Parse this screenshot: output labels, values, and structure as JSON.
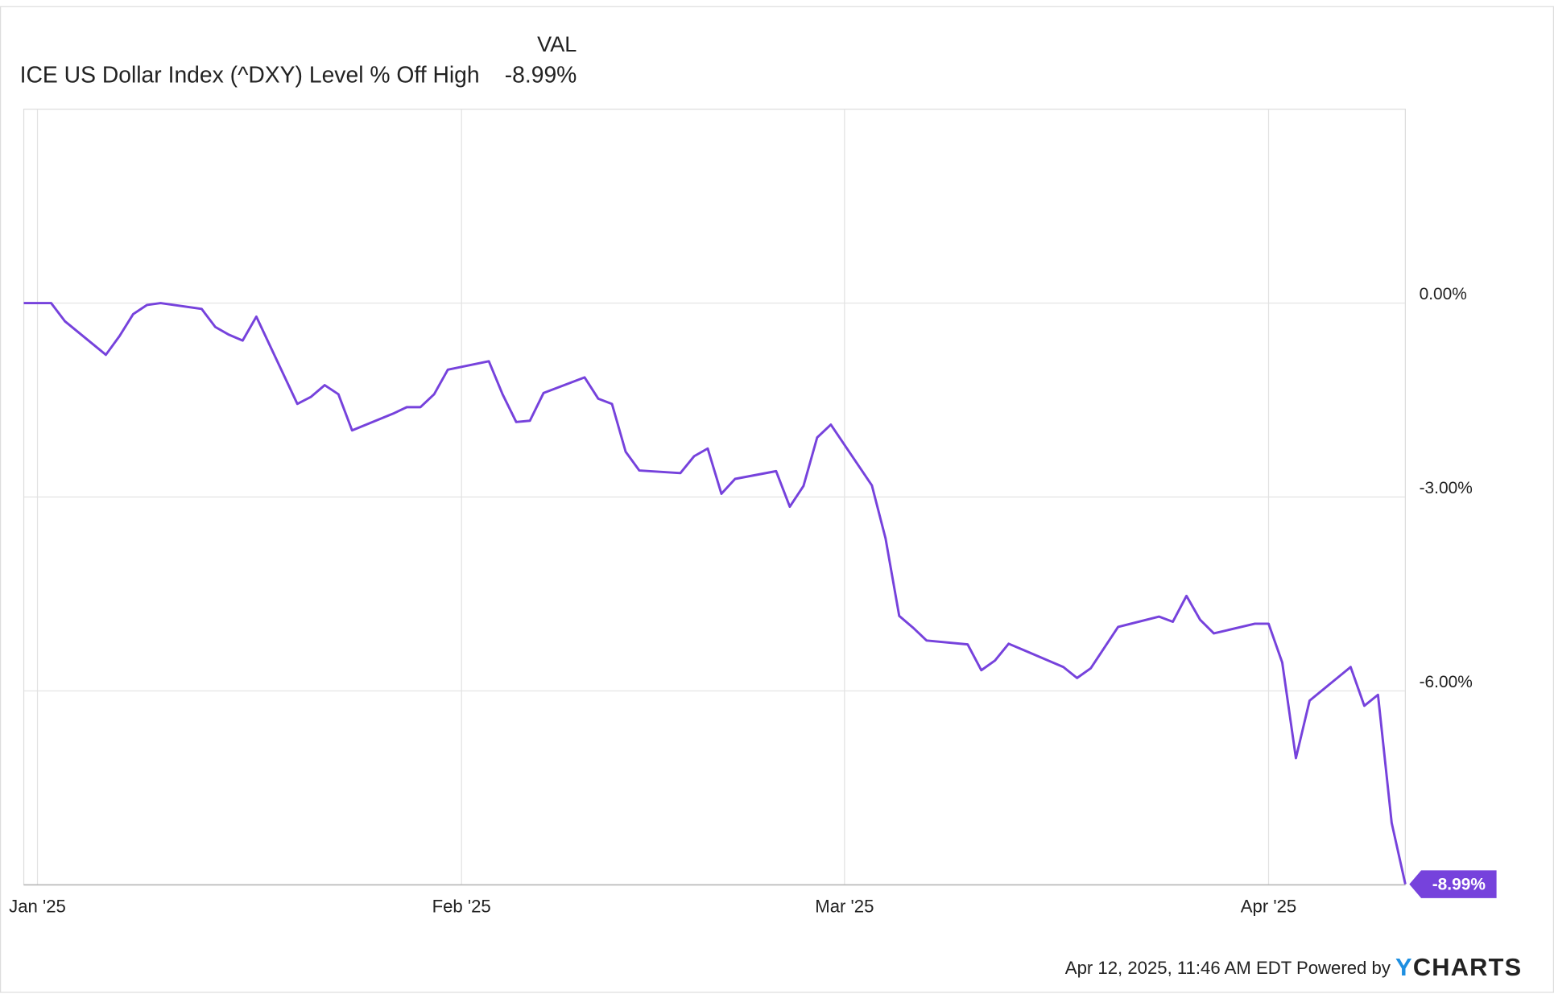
{
  "chart_data": {
    "type": "line",
    "value_column_label": "VAL",
    "x": [
      -1,
      1,
      2,
      5,
      6,
      7,
      8,
      9,
      12,
      13,
      14,
      15,
      16,
      19,
      20,
      21,
      22,
      23,
      26,
      27,
      28,
      29,
      30,
      33,
      34,
      35,
      36,
      37,
      40,
      41,
      42,
      43,
      44,
      47,
      48,
      49,
      50,
      51,
      54,
      55,
      56,
      57,
      58,
      61,
      62,
      63,
      64,
      65,
      68,
      69,
      70,
      71,
      72,
      75,
      76,
      77,
      79,
      82,
      83,
      84,
      85,
      86,
      89,
      90,
      91,
      92,
      93,
      96,
      97,
      98,
      99,
      100
    ],
    "series": [
      {
        "name": "ICE US Dollar Index (^DXY) Level % Off High",
        "color": "#7642dc",
        "values": [
          0,
          0,
          -0.28,
          -0.8,
          -0.51,
          -0.17,
          -0.03,
          0,
          -0.09,
          -0.37,
          -0.49,
          -0.58,
          -0.21,
          -1.56,
          -1.45,
          -1.27,
          -1.41,
          -1.97,
          -1.71,
          -1.61,
          -1.61,
          -1.41,
          -1.03,
          -0.9,
          -1.41,
          -1.84,
          -1.82,
          -1.39,
          -1.15,
          -1.48,
          -1.56,
          -2.3,
          -2.59,
          -2.63,
          -2.37,
          -2.25,
          -2.95,
          -2.72,
          -2.6,
          -3.15,
          -2.83,
          -2.08,
          -1.88,
          -2.82,
          -3.64,
          -4.84,
          -5.02,
          -5.22,
          -5.28,
          -5.68,
          -5.53,
          -5.27,
          -5.36,
          -5.63,
          -5.8,
          -5.65,
          -5.01,
          -4.85,
          -4.93,
          -4.53,
          -4.9,
          -5.11,
          -4.96,
          -4.96,
          -5.56,
          -7.04,
          -6.15,
          -5.63,
          -6.23,
          -6.06,
          -8.04,
          -8.99
        ],
        "value_labels": [
          null,
          null,
          null,
          null,
          null,
          null,
          null,
          null,
          null,
          null,
          null,
          null,
          null,
          null,
          null,
          null,
          null,
          null,
          null,
          null,
          null,
          null,
          null,
          null,
          null,
          null,
          null,
          null,
          null,
          null,
          null,
          null,
          null,
          null,
          null,
          null,
          null,
          null,
          null,
          null,
          null,
          null,
          null,
          null,
          null,
          null,
          null,
          null,
          null,
          null,
          null,
          null,
          null,
          null,
          null,
          null,
          null,
          null,
          null,
          null,
          null,
          null,
          null,
          null,
          null,
          null,
          null,
          null,
          null,
          null,
          null,
          "-8.99%"
        ]
      }
    ],
    "xlim": [
      -1,
      100
    ],
    "xticks": [
      {
        "value": 0,
        "label": "Jan '25"
      },
      {
        "value": 31,
        "label": "Feb '25"
      },
      {
        "value": 59,
        "label": "Mar '25"
      },
      {
        "value": 90,
        "label": "Apr '25"
      }
    ],
    "ylim": [
      -9,
      3
    ],
    "yticks": [
      {
        "value": 0,
        "label": "0.00%"
      },
      {
        "value": -3,
        "label": "-3.00%"
      },
      {
        "value": -6,
        "label": "-6.00%"
      }
    ],
    "grid": true
  },
  "footer": {
    "text": "Apr 12, 2025, 11:46 AM EDT Powered by",
    "logo": "YCHARTS"
  }
}
